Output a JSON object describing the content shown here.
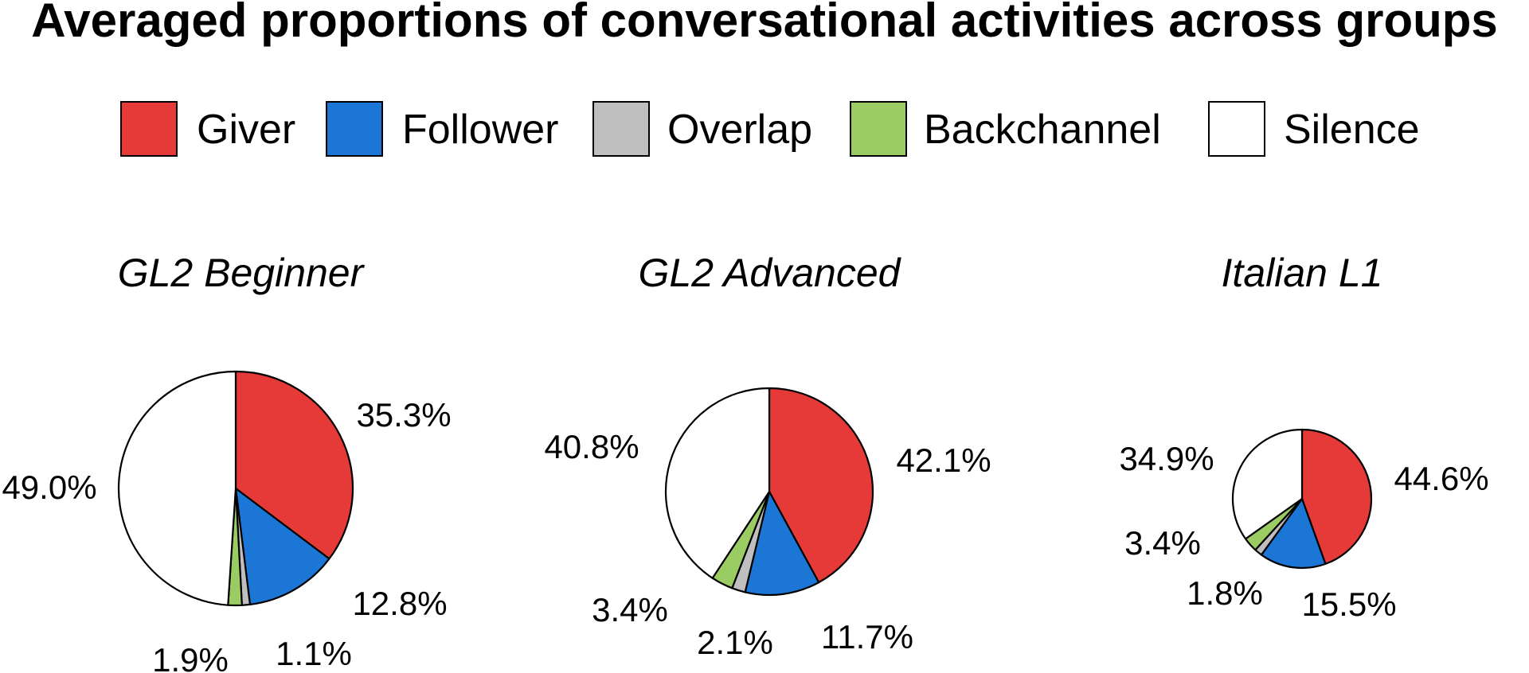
{
  "chart_data": {
    "type": "pie",
    "title": "Averaged proportions of conversational activities across groups",
    "legend": [
      {
        "label": "Giver",
        "color": "#e53a37"
      },
      {
        "label": "Follower",
        "color": "#1c76d6"
      },
      {
        "label": "Overlap",
        "color": "#bfbfbf"
      },
      {
        "label": "Backchannel",
        "color": "#9bcc63"
      },
      {
        "label": "Silence",
        "color": "#ffffff"
      }
    ],
    "legend_position": "top",
    "pies": [
      {
        "title": "GL2 Beginner",
        "slices": [
          {
            "category": "Giver",
            "value": 35.3,
            "label": "35.3%"
          },
          {
            "category": "Follower",
            "value": 12.8,
            "label": "12.8%"
          },
          {
            "category": "Overlap",
            "value": 1.1,
            "label": "1.1%"
          },
          {
            "category": "Backchannel",
            "value": 1.9,
            "label": "1.9%"
          },
          {
            "category": "Silence",
            "value": 49.0,
            "label": "49.0%"
          }
        ]
      },
      {
        "title": "GL2 Advanced",
        "slices": [
          {
            "category": "Giver",
            "value": 42.1,
            "label": "42.1%"
          },
          {
            "category": "Follower",
            "value": 11.7,
            "label": "11.7%"
          },
          {
            "category": "Overlap",
            "value": 2.1,
            "label": "2.1%"
          },
          {
            "category": "Backchannel",
            "value": 3.4,
            "label": "3.4%"
          },
          {
            "category": "Silence",
            "value": 40.8,
            "label": "40.8%"
          }
        ]
      },
      {
        "title": "Italian L1",
        "slices": [
          {
            "category": "Giver",
            "value": 44.6,
            "label": "44.6%"
          },
          {
            "category": "Follower",
            "value": 15.5,
            "label": "15.5%"
          },
          {
            "category": "Overlap",
            "value": 1.8,
            "label": "1.8%"
          },
          {
            "category": "Backchannel",
            "value": 3.4,
            "label": "3.4%"
          },
          {
            "category": "Silence",
            "value": 34.9,
            "label": "34.9%"
          }
        ]
      }
    ]
  }
}
